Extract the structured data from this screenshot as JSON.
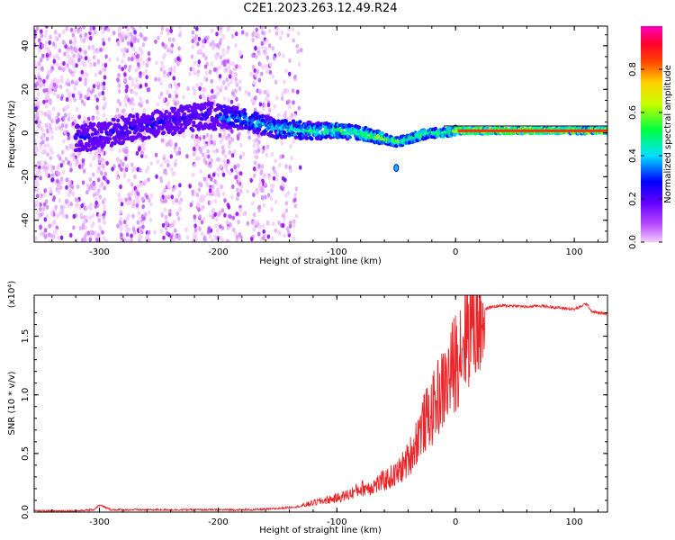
{
  "title": "C2E1.2023.263.12.49.R24",
  "chart_data": [
    {
      "type": "heatmap",
      "xlabel": "Height of straight line (km)",
      "ylabel": "Frequency (Hz)",
      "xlim": [
        -355,
        128
      ],
      "ylim": [
        -50,
        49
      ],
      "xticks": [
        -300,
        -200,
        -100,
        0,
        100
      ],
      "xtick_labels": [
        "-300",
        "-200",
        "-100",
        "0",
        "100"
      ],
      "yticks": [
        -40,
        -20,
        0,
        20,
        40
      ],
      "ytick_labels": [
        "-40",
        "-20",
        "0",
        "20",
        "40"
      ],
      "colorbar": {
        "label": "Normalized spectral amplitude",
        "range": [
          0,
          1
        ],
        "ticks": [
          0.0,
          0.2,
          0.4,
          0.6,
          0.8
        ],
        "tick_labels": [
          "0.0",
          "0.2",
          "0.4",
          "0.6",
          "0.8"
        ],
        "colors": [
          "#f3ccff",
          "#9a00ff",
          "#0000ff",
          "#00e0ff",
          "#00ff40",
          "#c8ff00",
          "#ffff00",
          "#ff8000",
          "#ff0000",
          "#ff00c0"
        ]
      },
      "ridge_points": {
        "x": [
          -310,
          -275,
          -212,
          -185,
          -150,
          -120,
          -100,
          -80,
          -65,
          -50,
          -40,
          -30,
          -20,
          -10,
          0,
          20,
          50,
          80,
          110,
          128
        ],
        "y": [
          -2,
          2,
          8,
          7,
          2,
          1,
          1,
          0,
          -2,
          -4,
          -3,
          -1,
          0,
          0,
          1,
          1,
          1,
          1,
          1,
          1
        ]
      },
      "grid": false
    },
    {
      "type": "line",
      "xlabel": "Height of straight line (km)",
      "ylabel": "SNR (10 * v/v)",
      "exponent_label": "(x10⁴)",
      "xlim": [
        -355,
        128
      ],
      "ylim": [
        0,
        1.85
      ],
      "xticks": [
        -300,
        -200,
        -100,
        0,
        100
      ],
      "xtick_labels": [
        "-300",
        "-200",
        "-100",
        "0",
        "100"
      ],
      "yticks": [
        0.0,
        0.5,
        1.0,
        1.5
      ],
      "ytick_labels": [
        "0.0",
        "0.5",
        "1.0",
        "1.5"
      ],
      "series": [
        {
          "color": "#e8262a",
          "x": [
            -355,
            -320,
            -305,
            -300,
            -290,
            -250,
            -200,
            -170,
            -150,
            -130,
            -120,
            -110,
            -100,
            -90,
            -80,
            -70,
            -60,
            -50,
            -45,
            -40,
            -35,
            -30,
            -25,
            -20,
            -15,
            -10,
            -5,
            0,
            5,
            10,
            15,
            20,
            25,
            30,
            40,
            50,
            60,
            70,
            80,
            90,
            100,
            105,
            110,
            115,
            120,
            128
          ],
          "y": [
            0.01,
            0.01,
            0.02,
            0.06,
            0.02,
            0.02,
            0.02,
            0.02,
            0.03,
            0.05,
            0.08,
            0.1,
            0.12,
            0.15,
            0.2,
            0.22,
            0.27,
            0.32,
            0.38,
            0.45,
            0.55,
            0.7,
            0.78,
            0.85,
            0.98,
            1.05,
            1.15,
            1.3,
            1.45,
            1.58,
            1.65,
            1.7,
            1.73,
            1.75,
            1.76,
            1.76,
            1.75,
            1.76,
            1.75,
            1.74,
            1.73,
            1.75,
            1.78,
            1.71,
            1.7,
            1.69
          ]
        }
      ],
      "grid": false
    }
  ]
}
